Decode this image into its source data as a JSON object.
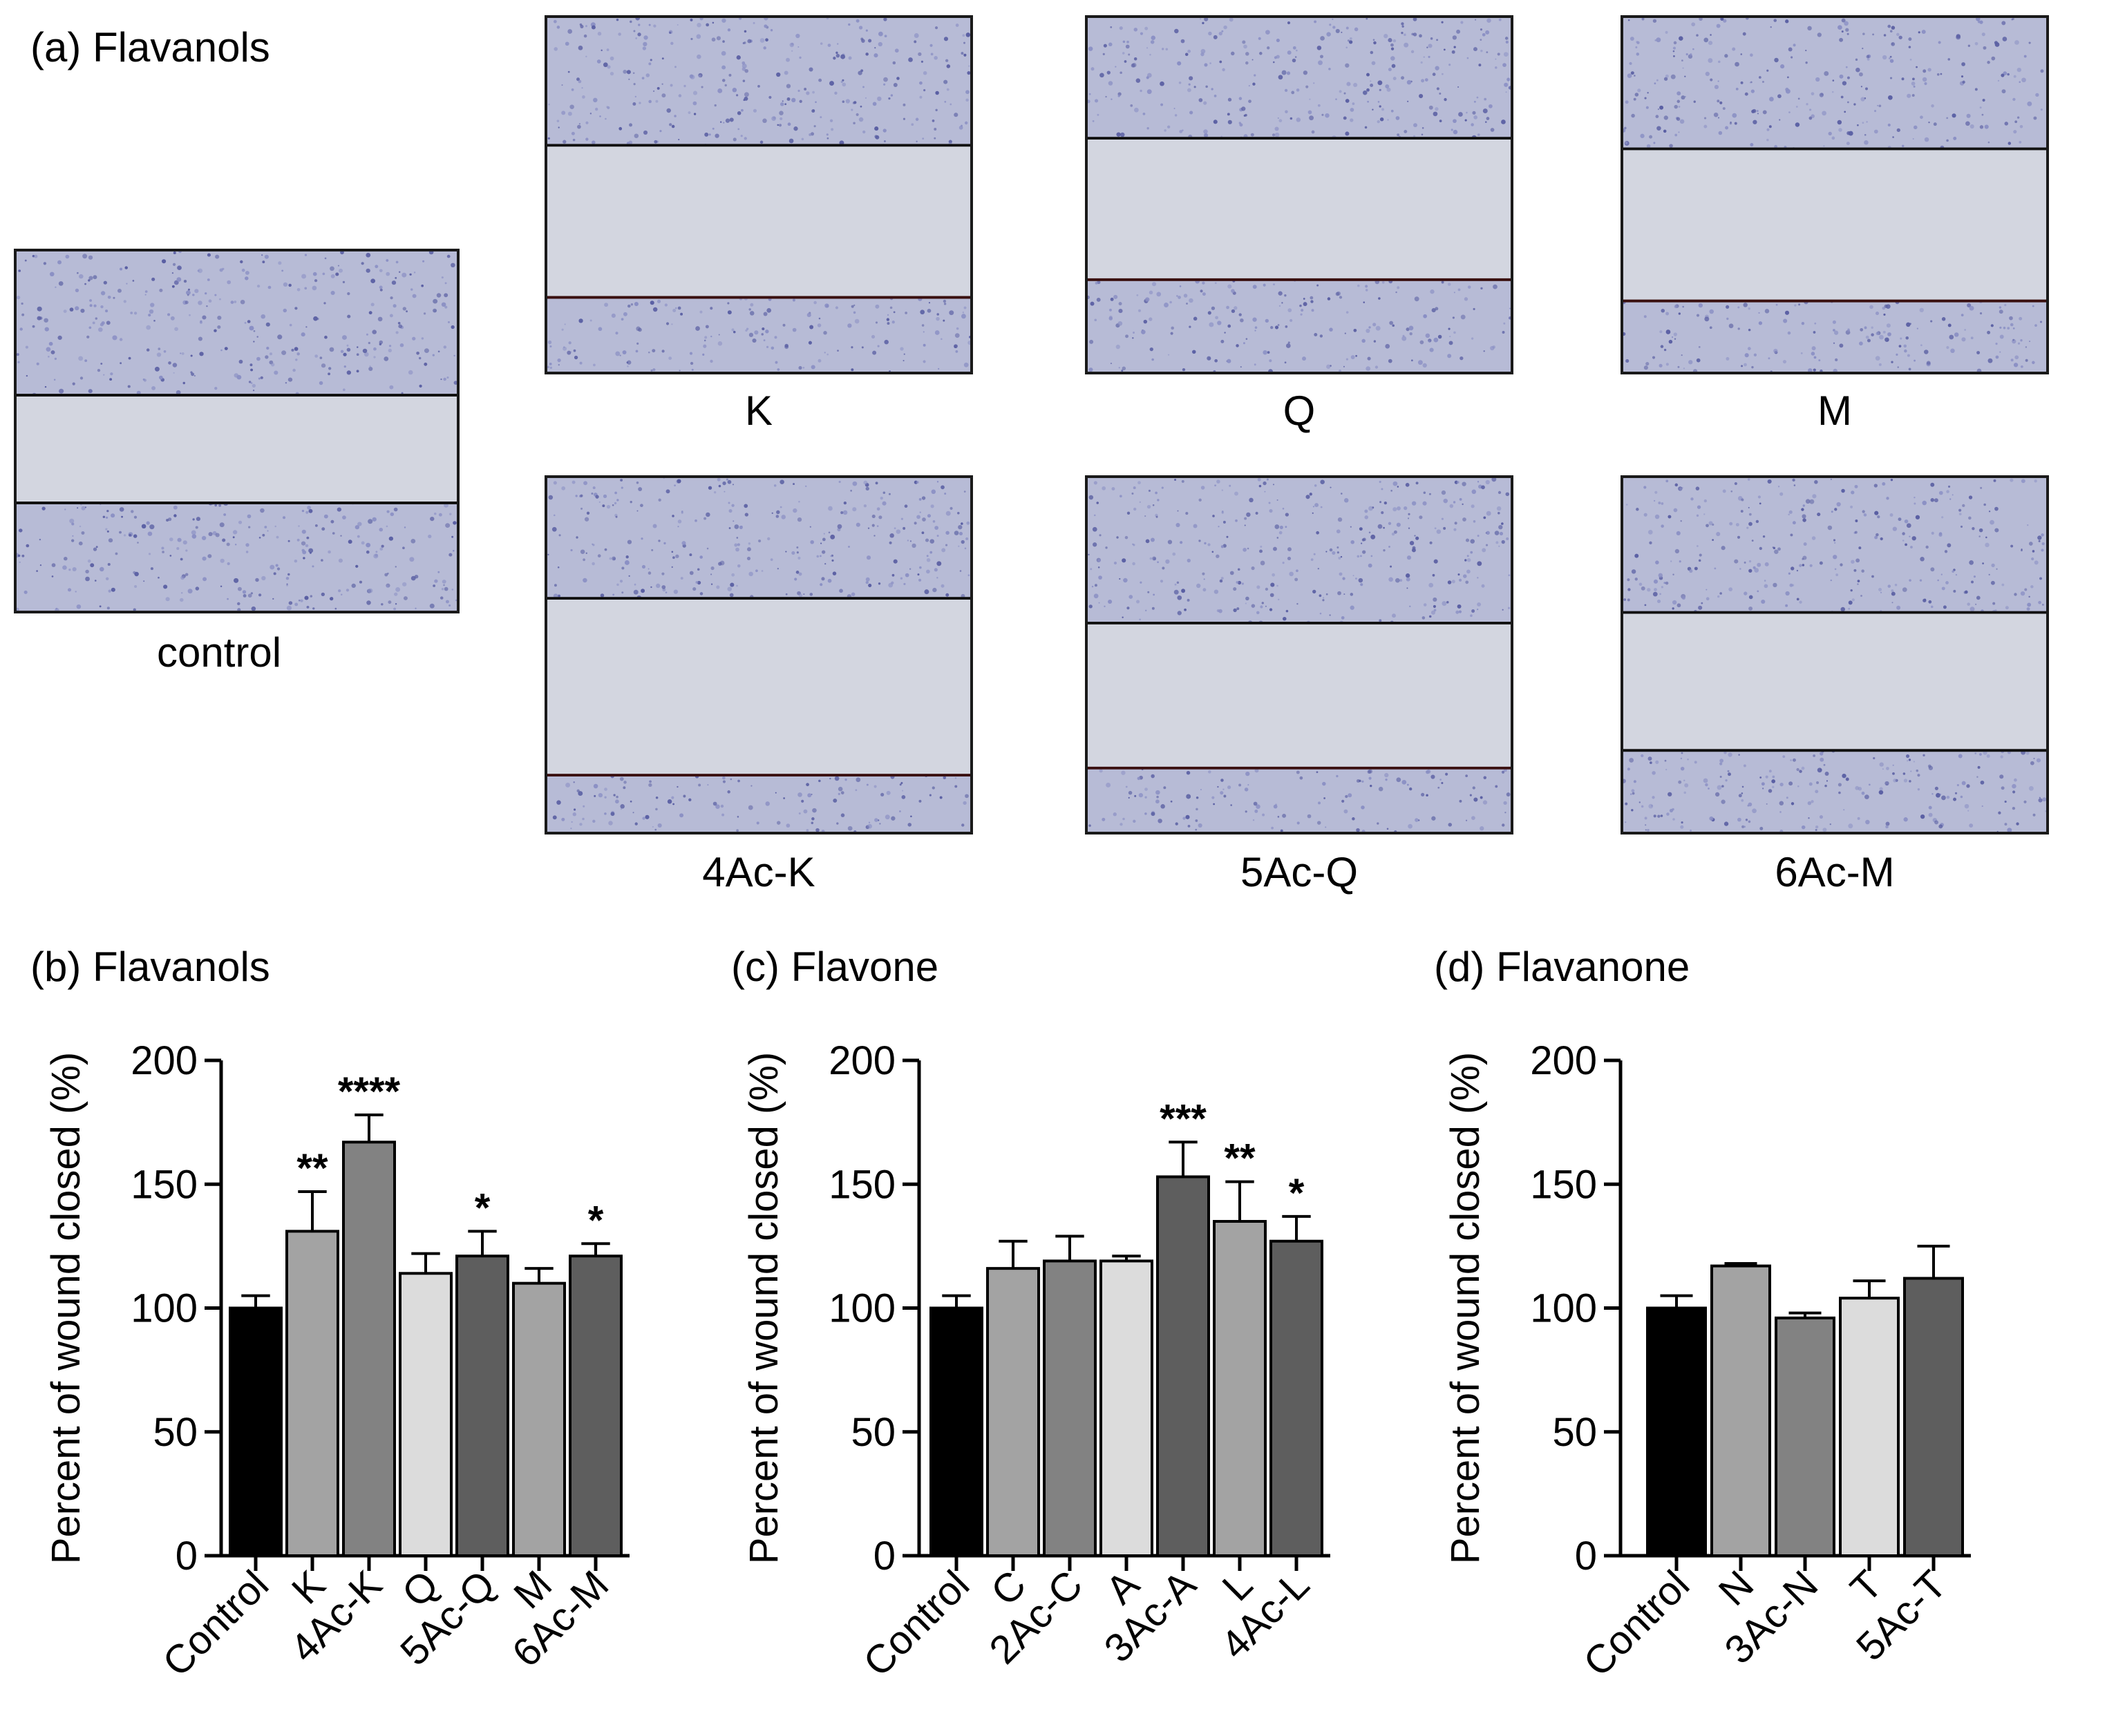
{
  "panel_a": {
    "title": "(a) Flavanols",
    "images": [
      {
        "id": "control",
        "label": "control"
      },
      {
        "id": "K",
        "label": "K"
      },
      {
        "id": "Q",
        "label": "Q"
      },
      {
        "id": "M",
        "label": "M"
      },
      {
        "id": "4Ac-K",
        "label": "4Ac-K"
      },
      {
        "id": "5Ac-Q",
        "label": "5Ac-Q"
      },
      {
        "id": "6Ac-M",
        "label": "6Ac-M"
      }
    ]
  },
  "chart_data": [
    {
      "panel": "(b)",
      "type": "bar",
      "title": "(b) Flavanols",
      "ylabel": "Percent of wound closed (%)",
      "ylim": [
        0,
        200
      ],
      "yticks": [
        0,
        50,
        100,
        150,
        200
      ],
      "categories": [
        "Control",
        "K",
        "4Ac-K",
        "Q",
        "5Ac-Q",
        "M",
        "6Ac-M"
      ],
      "values": [
        100,
        131,
        167,
        114,
        121,
        110,
        121
      ],
      "errors": [
        5,
        16,
        11,
        8,
        10,
        6,
        5
      ],
      "significance": [
        "",
        "**",
        "****",
        "",
        "*",
        "",
        "*"
      ],
      "colors": [
        "#000000",
        "#a3a3a3",
        "#828282",
        "#dcdcdc",
        "#5e5e5e",
        "#a3a3a3",
        "#5e5e5e"
      ]
    },
    {
      "panel": "(c)",
      "type": "bar",
      "title": "(c) Flavone",
      "ylabel": "Percent of wound closed (%)",
      "ylim": [
        0,
        200
      ],
      "yticks": [
        0,
        50,
        100,
        150,
        200
      ],
      "categories": [
        "Control",
        "C",
        "2Ac-C",
        "A",
        "3Ac-A",
        "L",
        "4Ac-L"
      ],
      "values": [
        100,
        116,
        119,
        119,
        153,
        135,
        127
      ],
      "errors": [
        5,
        11,
        10,
        2,
        14,
        16,
        10
      ],
      "significance": [
        "",
        "",
        "",
        "",
        "***",
        "**",
        "*"
      ],
      "colors": [
        "#000000",
        "#a3a3a3",
        "#828282",
        "#dcdcdc",
        "#5e5e5e",
        "#a3a3a3",
        "#5e5e5e"
      ]
    },
    {
      "panel": "(d)",
      "type": "bar",
      "title": "(d) Flavanone",
      "ylabel": "Percent of wound closed (%)",
      "ylim": [
        0,
        200
      ],
      "yticks": [
        0,
        50,
        100,
        150,
        200
      ],
      "categories": [
        "Control",
        "N",
        "3Ac-N",
        "T",
        "5Ac-T"
      ],
      "values": [
        100,
        117,
        96,
        104,
        112
      ],
      "errors": [
        5,
        1,
        2,
        7,
        13
      ],
      "significance": [
        "",
        "",
        "",
        "",
        ""
      ],
      "colors": [
        "#000000",
        "#a3a3a3",
        "#828282",
        "#dcdcdc",
        "#5e5e5e"
      ]
    }
  ]
}
